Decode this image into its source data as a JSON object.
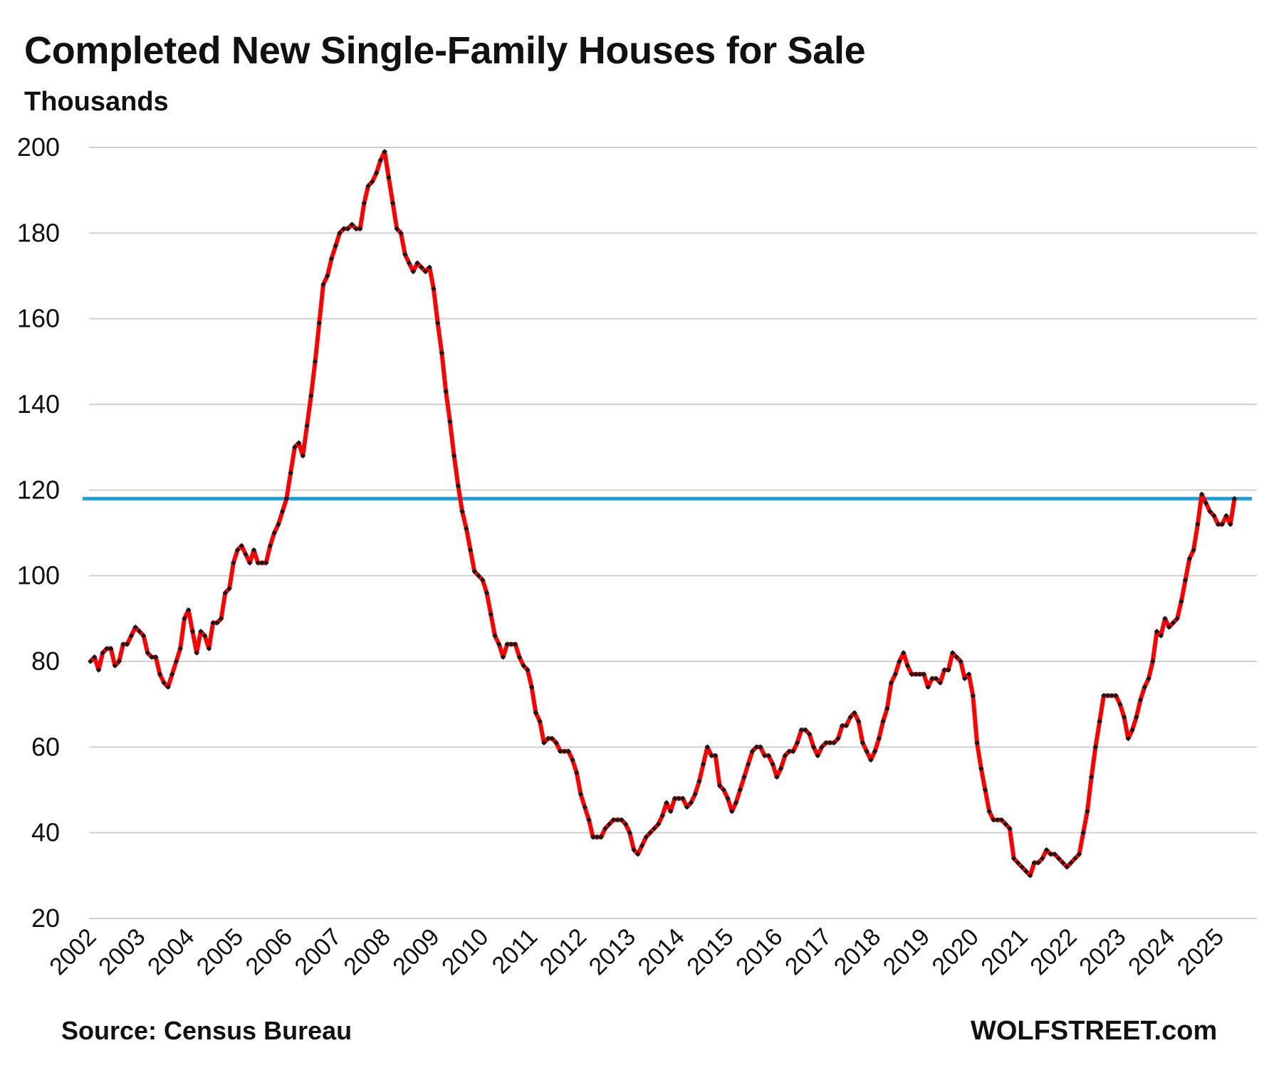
{
  "title": "Completed New Single-Family Houses for Sale",
  "subtitle": "Thousands",
  "source": "Source: Census Bureau",
  "brand": "WOLFSTREET.com",
  "colors": {
    "line": "#ff0000",
    "marker": "#1a1a1a",
    "reference_line": "#1ea0dc",
    "grid": "#d0d0d0"
  },
  "chart_data": {
    "type": "line",
    "title": "Completed New Single-Family Houses for Sale",
    "ylabel": "Thousands",
    "xlabel": "",
    "ylim": [
      20,
      200
    ],
    "yticks": [
      20,
      40,
      60,
      80,
      100,
      120,
      140,
      160,
      180,
      200
    ],
    "xticks": [
      "2002",
      "2003",
      "2004",
      "2005",
      "2006",
      "2007",
      "2008",
      "2009",
      "2010",
      "2011",
      "2012",
      "2013",
      "2014",
      "2015",
      "2016",
      "2017",
      "2018",
      "2019",
      "2020",
      "2021",
      "2022",
      "2023",
      "2024",
      "2025"
    ],
    "x_start": "2002-01",
    "frequency": "monthly",
    "grid": true,
    "reference_line": {
      "y": 118
    },
    "series": [
      {
        "values": [
          80,
          81,
          78,
          82,
          83,
          83,
          79,
          80,
          84,
          84,
          86,
          88,
          87,
          86,
          82,
          81,
          81,
          77,
          75,
          74,
          77,
          80,
          83,
          90,
          92,
          87,
          82,
          87,
          86,
          83,
          89,
          89,
          90,
          96,
          97,
          103,
          106,
          107,
          105,
          103,
          106,
          103,
          103,
          103,
          107,
          110,
          112,
          115,
          118,
          124,
          130,
          131,
          128,
          135,
          142,
          150,
          159,
          168,
          170,
          174,
          177,
          180,
          181,
          181,
          182,
          181,
          181,
          187,
          191,
          192,
          194,
          197,
          199,
          193,
          187,
          181,
          180,
          175,
          173,
          171,
          173,
          172,
          171,
          172,
          167,
          159,
          152,
          143,
          136,
          128,
          121,
          115,
          111,
          106,
          101,
          100,
          99,
          96,
          91,
          86,
          84,
          81,
          84,
          84,
          84,
          81,
          79,
          78,
          74,
          68,
          66,
          61,
          62,
          62,
          61,
          59,
          59,
          59,
          57,
          54,
          49,
          46,
          43,
          39,
          39,
          39,
          41,
          42,
          43,
          43,
          43,
          42,
          40,
          36,
          35,
          37,
          39,
          40,
          41,
          42,
          44,
          47,
          45,
          48,
          48,
          48,
          46,
          47,
          49,
          52,
          56,
          60,
          58,
          58,
          51,
          50,
          48,
          45,
          47,
          50,
          53,
          56,
          59,
          60,
          60,
          58,
          58,
          56,
          53,
          55,
          58,
          59,
          59,
          61,
          64,
          64,
          63,
          60,
          58,
          60,
          61,
          61,
          61,
          62,
          65,
          65,
          67,
          68,
          66,
          61,
          59,
          57,
          59,
          62,
          66,
          69,
          75,
          77,
          80,
          82,
          79,
          77,
          77,
          77,
          77,
          74,
          76,
          76,
          75,
          78,
          78,
          82,
          81,
          80,
          76,
          77,
          72,
          61,
          55,
          50,
          45,
          43,
          43,
          43,
          42,
          41,
          34,
          33,
          32,
          31,
          30,
          33,
          33,
          34,
          36,
          35,
          35,
          34,
          33,
          32,
          33,
          34,
          35,
          40,
          45,
          53,
          60,
          66,
          72,
          72,
          72,
          72,
          70,
          67,
          62,
          64,
          67,
          71,
          74,
          76,
          80,
          87,
          86,
          90,
          88,
          89,
          90,
          94,
          99,
          104,
          106,
          112,
          119,
          117,
          115,
          114,
          112,
          112,
          114,
          112,
          118
        ]
      }
    ]
  }
}
